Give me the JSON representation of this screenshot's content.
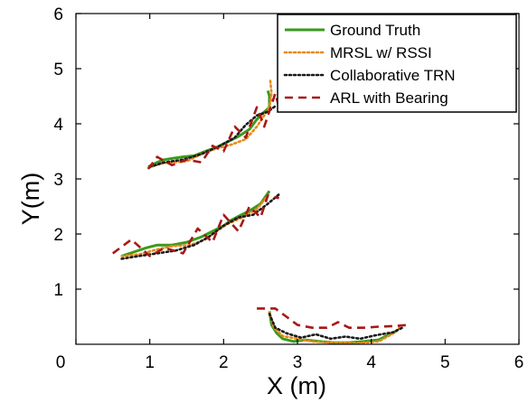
{
  "chart_data": {
    "type": "line",
    "xlabel": "X (m)",
    "ylabel": "Y(m)",
    "xlim": [
      0,
      6
    ],
    "ylim": [
      0,
      6
    ],
    "x_ticks": [
      "0",
      "1",
      "2",
      "3",
      "4",
      "5",
      "6"
    ],
    "y_ticks": [
      "1",
      "2",
      "3",
      "4",
      "5",
      "6"
    ],
    "grid": false,
    "legend_position": "top-right",
    "series": [
      {
        "name": "Ground Truth",
        "color": "#3a9a1e",
        "style": "solid",
        "segments": [
          [
            [
              0.98,
              3.22
            ],
            [
              1.1,
              3.3
            ],
            [
              1.2,
              3.35
            ],
            [
              1.3,
              3.37
            ],
            [
              1.45,
              3.4
            ],
            [
              1.6,
              3.42
            ],
            [
              1.75,
              3.5
            ],
            [
              1.9,
              3.57
            ],
            [
              2.05,
              3.67
            ],
            [
              2.2,
              3.77
            ],
            [
              2.35,
              3.9
            ],
            [
              2.45,
              4.08
            ],
            [
              2.52,
              4.18
            ],
            [
              2.58,
              4.25
            ],
            [
              2.62,
              4.3
            ],
            [
              2.62,
              4.5
            ],
            [
              2.6,
              4.6
            ]
          ],
          [
            [
              0.62,
              1.6
            ],
            [
              0.8,
              1.68
            ],
            [
              0.95,
              1.75
            ],
            [
              1.1,
              1.8
            ],
            [
              1.3,
              1.8
            ],
            [
              1.5,
              1.85
            ],
            [
              1.7,
              1.95
            ],
            [
              1.85,
              2.05
            ],
            [
              2.0,
              2.15
            ],
            [
              2.1,
              2.25
            ],
            [
              2.2,
              2.32
            ],
            [
              2.35,
              2.42
            ],
            [
              2.5,
              2.55
            ],
            [
              2.62,
              2.78
            ]
          ],
          [
            [
              2.62,
              0.6
            ],
            [
              2.65,
              0.35
            ],
            [
              2.72,
              0.2
            ],
            [
              2.8,
              0.1
            ],
            [
              2.95,
              0.05
            ],
            [
              3.1,
              0.08
            ],
            [
              3.3,
              0.05
            ],
            [
              3.5,
              0.03
            ],
            [
              3.7,
              0.03
            ],
            [
              3.9,
              0.05
            ],
            [
              4.1,
              0.08
            ],
            [
              4.25,
              0.18
            ],
            [
              4.35,
              0.25
            ]
          ]
        ]
      },
      {
        "name": "MRSL w/ RSSI",
        "color": "#e8891a",
        "style": "dotted",
        "segments": [
          [
            [
              0.98,
              3.2
            ],
            [
              1.15,
              3.28
            ],
            [
              1.3,
              3.3
            ],
            [
              1.5,
              3.32
            ],
            [
              1.7,
              3.45
            ],
            [
              1.9,
              3.55
            ],
            [
              2.1,
              3.62
            ],
            [
              2.3,
              3.72
            ],
            [
              2.45,
              3.95
            ],
            [
              2.55,
              4.15
            ],
            [
              2.62,
              4.3
            ],
            [
              2.65,
              4.55
            ],
            [
              2.63,
              4.8
            ]
          ],
          [
            [
              0.62,
              1.6
            ],
            [
              0.85,
              1.63
            ],
            [
              1.1,
              1.72
            ],
            [
              1.3,
              1.78
            ],
            [
              1.55,
              1.8
            ],
            [
              1.75,
              1.9
            ],
            [
              1.9,
              2.05
            ],
            [
              2.05,
              2.18
            ],
            [
              2.25,
              2.3
            ],
            [
              2.45,
              2.45
            ],
            [
              2.6,
              2.7
            ]
          ],
          [
            [
              2.62,
              0.58
            ],
            [
              2.68,
              0.3
            ],
            [
              2.8,
              0.15
            ],
            [
              3.0,
              0.1
            ],
            [
              3.2,
              0.05
            ],
            [
              3.5,
              0.03
            ],
            [
              3.8,
              0.02
            ],
            [
              4.1,
              0.05
            ],
            [
              4.3,
              0.2
            ],
            [
              4.38,
              0.3
            ]
          ]
        ]
      },
      {
        "name": "Collaborative TRN",
        "color": "#1a1a1a",
        "style": "dotted",
        "segments": [
          [
            [
              1.0,
              3.22
            ],
            [
              1.2,
              3.3
            ],
            [
              1.45,
              3.35
            ],
            [
              1.7,
              3.45
            ],
            [
              1.95,
              3.6
            ],
            [
              2.15,
              3.75
            ],
            [
              2.3,
              3.98
            ],
            [
              2.45,
              4.15
            ],
            [
              2.6,
              4.22
            ],
            [
              2.7,
              4.32
            ]
          ],
          [
            [
              0.62,
              1.55
            ],
            [
              0.85,
              1.6
            ],
            [
              1.1,
              1.65
            ],
            [
              1.35,
              1.7
            ],
            [
              1.6,
              1.8
            ],
            [
              1.8,
              1.95
            ],
            [
              2.0,
              2.15
            ],
            [
              2.2,
              2.3
            ],
            [
              2.4,
              2.35
            ],
            [
              2.6,
              2.55
            ],
            [
              2.75,
              2.72
            ]
          ],
          [
            [
              2.62,
              0.55
            ],
            [
              2.7,
              0.3
            ],
            [
              2.85,
              0.2
            ],
            [
              3.05,
              0.12
            ],
            [
              3.25,
              0.18
            ],
            [
              3.45,
              0.1
            ],
            [
              3.65,
              0.14
            ],
            [
              3.85,
              0.1
            ],
            [
              4.05,
              0.16
            ],
            [
              4.3,
              0.22
            ],
            [
              4.42,
              0.3
            ]
          ]
        ]
      },
      {
        "name": "ARL with Bearing",
        "color": "#a81818",
        "style": "dashed",
        "segments": [
          [
            [
              0.98,
              3.18
            ],
            [
              1.1,
              3.4
            ],
            [
              1.3,
              3.25
            ],
            [
              1.5,
              3.35
            ],
            [
              1.7,
              3.3
            ],
            [
              1.85,
              3.6
            ],
            [
              2.0,
              3.5
            ],
            [
              2.15,
              3.95
            ],
            [
              2.3,
              3.75
            ],
            [
              2.45,
              4.3
            ],
            [
              2.55,
              3.95
            ],
            [
              2.7,
              4.55
            ],
            [
              2.75,
              4.3
            ]
          ],
          [
            [
              0.5,
              1.65
            ],
            [
              0.75,
              1.9
            ],
            [
              1.0,
              1.6
            ],
            [
              1.2,
              1.75
            ],
            [
              1.45,
              1.65
            ],
            [
              1.65,
              2.1
            ],
            [
              1.85,
              1.85
            ],
            [
              2.0,
              2.35
            ],
            [
              2.2,
              2.05
            ],
            [
              2.35,
              2.5
            ],
            [
              2.5,
              2.3
            ],
            [
              2.6,
              2.7
            ],
            [
              2.75,
              2.65
            ]
          ],
          [
            [
              2.45,
              0.65
            ],
            [
              2.7,
              0.65
            ],
            [
              2.85,
              0.5
            ],
            [
              3.0,
              0.35
            ],
            [
              3.2,
              0.3
            ],
            [
              3.4,
              0.3
            ],
            [
              3.55,
              0.4
            ],
            [
              3.7,
              0.3
            ],
            [
              3.9,
              0.3
            ],
            [
              4.1,
              0.32
            ],
            [
              4.3,
              0.33
            ],
            [
              4.5,
              0.35
            ]
          ]
        ]
      }
    ]
  }
}
